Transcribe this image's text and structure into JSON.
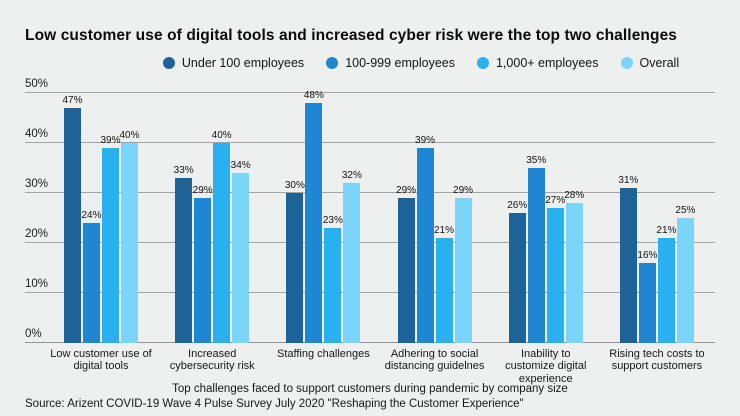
{
  "title": "Low customer use of digital tools and increased cyber risk were the top two challenges",
  "source": "Source: Arizent COVID-19 Wave 4 Pulse Survey July 2020 \"Reshaping the Customer Experience\"",
  "colors": {
    "background": "#eef0ef",
    "gridline": "#a2a5a3",
    "series_1": "#1e6397",
    "series_2": "#1f87d1",
    "series_3": "#29b0ee",
    "series_4": "#7bd5fb"
  },
  "chart_data": {
    "type": "bar",
    "title": "Low customer use of digital tools and increased cyber risk were the top two challenges",
    "caption": "Top challenges faced to support customers during pandemic by company size",
    "categories": [
      "Low customer use of\ndigital tools",
      "Increased\ncybersecurity risk",
      "Staffing challenges",
      "Adhering to social\ndistancing guidelnes",
      "Inability to\ncustomize digital\nexperience",
      "Rising tech costs to\nsupport customers"
    ],
    "series": [
      {
        "name": "Under 100 employees",
        "color": "#1e6397",
        "values": [
          47,
          33,
          30,
          29,
          26,
          31
        ]
      },
      {
        "name": "100-999 employees",
        "color": "#1f87d1",
        "values": [
          24,
          29,
          48,
          39,
          35,
          16
        ]
      },
      {
        "name": "1,000+ employees",
        "color": "#29b0ee",
        "values": [
          39,
          40,
          23,
          21,
          27,
          21
        ]
      },
      {
        "name": "Overall",
        "color": "#7bd5fb",
        "values": [
          40,
          34,
          32,
          29,
          28,
          25
        ]
      }
    ],
    "ylim": [
      0,
      50
    ],
    "yticks": [
      "0%",
      "10%",
      "20%",
      "30%",
      "40%",
      "50%"
    ],
    "ytick_values": [
      0,
      10,
      20,
      30,
      40,
      50
    ],
    "grid": true,
    "legend_position": "top",
    "value_label_suffix": "%"
  }
}
